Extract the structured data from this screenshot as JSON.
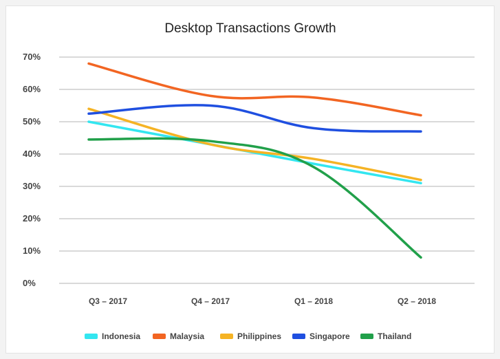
{
  "chart_data": {
    "type": "line",
    "title": "Desktop Transactions Growth",
    "xlabel": "",
    "ylabel": "",
    "categories": [
      "Q3 – 2017",
      "Q4 – 2017",
      "Q1 – 2018",
      "Q2 – 2018"
    ],
    "y_ticks": [
      "0%",
      "10%",
      "20%",
      "30%",
      "40%",
      "50%",
      "60%",
      "70%"
    ],
    "ylim": [
      0,
      70
    ],
    "grid": true,
    "legend_position": "bottom",
    "series": [
      {
        "name": "Indonesia",
        "color": "#33e6f0",
        "values": [
          50,
          43,
          37,
          31
        ]
      },
      {
        "name": "Malaysia",
        "color": "#f26522",
        "values": [
          68,
          58,
          57.5,
          52
        ]
      },
      {
        "name": "Philippines",
        "color": "#f5b324",
        "values": [
          54,
          43,
          38.5,
          32
        ]
      },
      {
        "name": "Singapore",
        "color": "#1f4fe0",
        "values": [
          52.5,
          55,
          48,
          47
        ]
      },
      {
        "name": "Thailand",
        "color": "#21a04a",
        "values": [
          44.5,
          44,
          36,
          8
        ]
      }
    ]
  }
}
